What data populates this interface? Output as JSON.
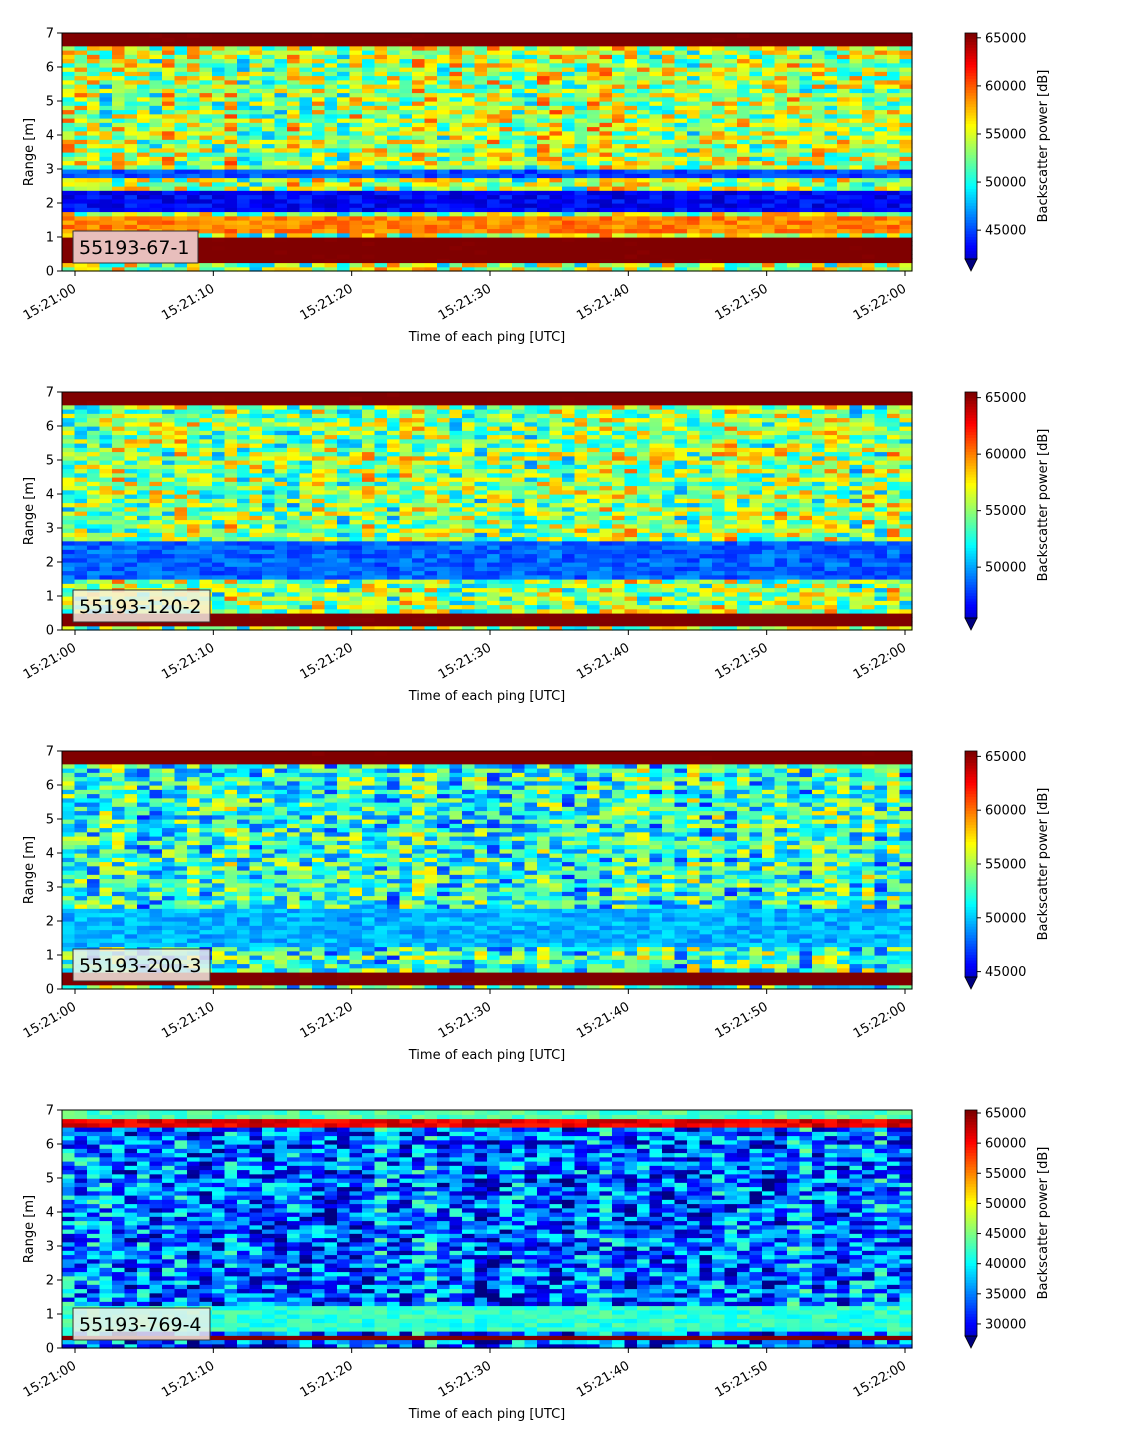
{
  "chart_data": [
    {
      "type": "heatmap",
      "label": "55193-67-1",
      "xlabel": "Time of each ping [UTC]",
      "ylabel": "Range [m]",
      "colorbar_label": "Backscatter power [dB]",
      "colormap": "jet",
      "xlim": [
        "15:21:00",
        "15:22:00"
      ],
      "x_ticks": [
        "15:21:00",
        "15:21:10",
        "15:21:20",
        "15:21:30",
        "15:21:40",
        "15:21:50",
        "15:22:00"
      ],
      "ylim": [
        0,
        7
      ],
      "y_ticks": [
        0,
        1,
        2,
        3,
        4,
        5,
        6,
        7
      ],
      "clim": [
        42000,
        65500
      ],
      "colorbar_ticks": [
        45000,
        50000,
        55000,
        60000,
        65000
      ],
      "features": [
        {
          "range": [
            0.25,
            1.05
          ],
          "level": 1.0
        },
        {
          "range": [
            1.15,
            1.6
          ],
          "level": 0.75
        },
        {
          "range": [
            1.8,
            2.4
          ],
          "level": 0.12
        },
        {
          "range": [
            2.7,
            3.0
          ],
          "level": 0.2
        },
        {
          "range": [
            6.6,
            7.0
          ],
          "level": 1.0
        }
      ],
      "background": 0.55
    },
    {
      "type": "heatmap",
      "label": "55193-120-2",
      "xlabel": "Time of each ping [UTC]",
      "ylabel": "Range [m]",
      "colorbar_label": "Backscatter power [dB]",
      "colormap": "jet",
      "xlim": [
        "15:21:00",
        "15:22:00"
      ],
      "x_ticks": [
        "15:21:00",
        "15:21:10",
        "15:21:20",
        "15:21:30",
        "15:21:40",
        "15:21:50",
        "15:22:00"
      ],
      "ylim": [
        0,
        7
      ],
      "y_ticks": [
        0,
        1,
        2,
        3,
        4,
        5,
        6,
        7
      ],
      "clim": [
        45500,
        65500
      ],
      "colorbar_ticks": [
        50000,
        55000,
        60000,
        65000
      ],
      "features": [
        {
          "range": [
            0.1,
            0.45
          ],
          "level": 1.0
        },
        {
          "range": [
            1.5,
            2.6
          ],
          "level": 0.22
        },
        {
          "range": [
            6.6,
            7.0
          ],
          "level": 1.0
        }
      ],
      "background": 0.52
    },
    {
      "type": "heatmap",
      "label": "55193-200-3",
      "xlabel": "Time of each ping [UTC]",
      "ylabel": "Range [m]",
      "colorbar_label": "Backscatter power [dB]",
      "colormap": "jet",
      "xlim": [
        "15:21:00",
        "15:22:00"
      ],
      "x_ticks": [
        "15:21:00",
        "15:21:10",
        "15:21:20",
        "15:21:30",
        "15:21:40",
        "15:21:50",
        "15:22:00"
      ],
      "ylim": [
        0,
        7
      ],
      "y_ticks": [
        0,
        1,
        2,
        3,
        4,
        5,
        6,
        7
      ],
      "clim": [
        44500,
        65500
      ],
      "colorbar_ticks": [
        45000,
        50000,
        55000,
        60000,
        65000
      ],
      "features": [
        {
          "range": [
            0.15,
            0.45
          ],
          "level": 1.0
        },
        {
          "range": [
            1.2,
            2.4
          ],
          "level": 0.3
        },
        {
          "range": [
            6.6,
            7.0
          ],
          "level": 1.0
        }
      ],
      "background": 0.42
    },
    {
      "type": "heatmap",
      "label": "55193-769-4",
      "xlabel": "Time of each ping [UTC]",
      "ylabel": "Range [m]",
      "colorbar_label": "Backscatter power [dB]",
      "colormap": "jet",
      "xlim": [
        "15:21:00",
        "15:22:00"
      ],
      "x_ticks": [
        "15:21:00",
        "15:21:10",
        "15:21:20",
        "15:21:30",
        "15:21:40",
        "15:21:50",
        "15:22:00"
      ],
      "ylim": [
        0,
        7
      ],
      "y_ticks": [
        0,
        1,
        2,
        3,
        4,
        5,
        6,
        7
      ],
      "clim": [
        28000,
        65500
      ],
      "colorbar_ticks": [
        30000,
        35000,
        40000,
        45000,
        50000,
        55000,
        60000,
        65000
      ],
      "features": [
        {
          "range": [
            0.2,
            0.35
          ],
          "level": 1.0
        },
        {
          "range": [
            0.5,
            1.2
          ],
          "level": 0.42
        },
        {
          "range": [
            6.5,
            6.7
          ],
          "level": 0.9
        },
        {
          "range": [
            6.7,
            7.0
          ],
          "level": 0.45
        }
      ],
      "background": 0.22
    }
  ]
}
